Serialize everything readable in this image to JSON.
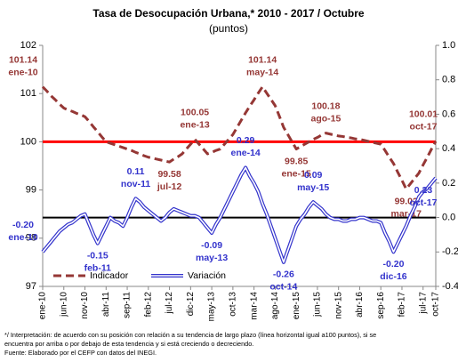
{
  "chart_data": {
    "type": "line",
    "title": "Tasa de Desocupación Urbana,* 2010 - 2017 / Octubre",
    "subtitle": "(puntos)",
    "categories": [
      "ene-10",
      null,
      null,
      null,
      null,
      "jun-10",
      null,
      null,
      null,
      null,
      "nov-10",
      null,
      null,
      null,
      null,
      "abr-11",
      null,
      null,
      null,
      null,
      "sep-11",
      null,
      null,
      null,
      null,
      "feb-12",
      null,
      null,
      null,
      null,
      "jul-12",
      null,
      null,
      null,
      null,
      "dic-12",
      null,
      null,
      null,
      null,
      "may-13",
      null,
      null,
      null,
      null,
      "oct-13",
      null,
      null,
      null,
      null,
      "mar-14",
      null,
      null,
      null,
      null,
      "ago-14",
      null,
      null,
      null,
      null,
      "ene-15",
      null,
      null,
      null,
      null,
      "jun-15",
      null,
      null,
      null,
      null,
      "nov-15",
      null,
      null,
      null,
      null,
      "abr-16",
      null,
      null,
      null,
      null,
      "sep-16",
      null,
      null,
      null,
      null,
      "feb-17",
      null,
      null,
      null,
      null,
      "jul-17",
      null,
      null,
      "oct-17"
    ],
    "series": [
      {
        "name": "Indicador",
        "color": "#953735",
        "axis": "y",
        "style": "dashed",
        "values": [
          101.14,
          101.05,
          100.95,
          100.87,
          100.78,
          100.7,
          100.66,
          100.63,
          100.59,
          100.56,
          100.52,
          100.42,
          100.31,
          100.21,
          100.1,
          100.0,
          99.97,
          99.94,
          99.91,
          99.88,
          99.85,
          99.82,
          99.78,
          99.75,
          99.71,
          99.68,
          99.66,
          99.64,
          99.62,
          99.6,
          99.58,
          99.64,
          99.69,
          99.75,
          99.85,
          99.95,
          100.05,
          99.95,
          99.85,
          99.75,
          99.78,
          99.82,
          99.85,
          99.95,
          100.05,
          100.15,
          100.3,
          100.45,
          100.6,
          100.74,
          100.87,
          101.01,
          101.14,
          101.01,
          100.88,
          100.75,
          100.53,
          100.3,
          100.15,
          100.0,
          99.85,
          99.9,
          99.95,
          100.0,
          100.05,
          100.09,
          100.14,
          100.18,
          100.16,
          100.14,
          100.12,
          100.11,
          100.09,
          100.08,
          100.06,
          100.05,
          100.03,
          100.01,
          99.99,
          99.97,
          99.95,
          99.82,
          99.68,
          99.55,
          99.37,
          99.2,
          99.02,
          99.13,
          99.24,
          99.35,
          99.52,
          99.68,
          99.85,
          100.01
        ],
        "value_labels": [
          [
            "101.14",
            "ene-10"
          ],
          null,
          null,
          null,
          null,
          null,
          null,
          null,
          null,
          null,
          null,
          null,
          null,
          null,
          null,
          null,
          null,
          null,
          null,
          null,
          null,
          null,
          null,
          null,
          null,
          null,
          null,
          null,
          null,
          null,
          [
            "99.58",
            "jul-12"
          ],
          null,
          null,
          null,
          null,
          null,
          [
            "100.05",
            "ene-13"
          ],
          null,
          null,
          null,
          null,
          null,
          null,
          null,
          null,
          null,
          null,
          null,
          null,
          null,
          null,
          null,
          [
            "101.14",
            "may-14"
          ],
          null,
          null,
          null,
          null,
          null,
          null,
          null,
          [
            "99.85",
            "ene-15"
          ],
          null,
          null,
          null,
          null,
          null,
          null,
          [
            "100.18",
            "ago-15"
          ],
          null,
          null,
          null,
          null,
          null,
          null,
          null,
          null,
          null,
          null,
          null,
          null,
          null,
          null,
          null,
          null,
          null,
          null,
          [
            "99.02",
            "mar-17"
          ],
          null,
          null,
          null,
          null,
          null,
          null,
          [
            "100.01",
            "oct-17"
          ]
        ]
      },
      {
        "name": "Variación",
        "color": "#3333cc",
        "axis": "y2",
        "style": "double",
        "values": [
          -0.2,
          -0.17,
          -0.14,
          -0.11,
          -0.08,
          -0.06,
          -0.04,
          -0.03,
          -0.01,
          0.01,
          0.02,
          -0.04,
          -0.1,
          -0.15,
          -0.1,
          -0.05,
          0.0,
          -0.02,
          -0.03,
          -0.05,
          0.0,
          0.06,
          0.11,
          0.09,
          0.06,
          0.04,
          0.02,
          0.0,
          -0.02,
          0.0,
          0.03,
          0.05,
          0.04,
          0.03,
          0.02,
          0.01,
          0.01,
          0.0,
          -0.03,
          -0.06,
          -0.09,
          -0.04,
          0.0,
          0.05,
          0.1,
          0.15,
          0.2,
          0.25,
          0.29,
          0.24,
          0.2,
          0.15,
          0.08,
          0.02,
          -0.05,
          -0.12,
          -0.19,
          -0.26,
          -0.19,
          -0.12,
          -0.05,
          -0.01,
          0.02,
          0.06,
          0.09,
          0.07,
          0.05,
          0.02,
          0.0,
          -0.01,
          -0.01,
          -0.02,
          -0.02,
          -0.01,
          -0.01,
          0.0,
          0.0,
          -0.01,
          -0.02,
          -0.02,
          -0.03,
          -0.09,
          -0.14,
          -0.2,
          -0.15,
          -0.1,
          -0.05,
          0.01,
          0.06,
          0.12,
          0.15,
          0.17,
          0.2,
          0.23
        ],
        "value_labels": [
          [
            "-0.20",
            "ene-10"
          ],
          null,
          null,
          null,
          null,
          null,
          null,
          null,
          null,
          null,
          null,
          null,
          null,
          [
            "-0.15",
            "feb-11"
          ],
          null,
          null,
          null,
          null,
          null,
          null,
          null,
          null,
          [
            "0.11",
            "nov-11"
          ],
          null,
          null,
          null,
          null,
          null,
          null,
          null,
          null,
          null,
          null,
          null,
          null,
          null,
          null,
          null,
          null,
          null,
          [
            "-0.09",
            "may-13"
          ],
          null,
          null,
          null,
          null,
          null,
          null,
          null,
          [
            "0.29",
            "ene-14"
          ],
          null,
          null,
          null,
          null,
          null,
          null,
          null,
          null,
          [
            "-0.26",
            "oct-14"
          ],
          null,
          null,
          null,
          null,
          null,
          null,
          [
            "0.09",
            "may-15"
          ],
          null,
          null,
          null,
          null,
          null,
          null,
          null,
          null,
          null,
          null,
          null,
          null,
          null,
          null,
          null,
          null,
          null,
          null,
          [
            "-0.20",
            "dic-16"
          ],
          null,
          null,
          null,
          null,
          null,
          null,
          null,
          null,
          null,
          [
            "0.23",
            "oct-17"
          ]
        ]
      }
    ],
    "ylim": [
      97,
      102
    ],
    "yticks": [
      97,
      98,
      99,
      100,
      101,
      102
    ],
    "y2lim": [
      -0.4,
      1.0
    ],
    "y2ticks": [
      -0.4,
      -0.2,
      {
        "value": 0,
        "label": "0.0"
      },
      0.2,
      0.4,
      0.6,
      0.8,
      {
        "value": 1,
        "label": "1.0"
      }
    ],
    "reference_lines": [
      {
        "value": 100,
        "axis": "y",
        "color": "#ff0000"
      },
      {
        "value": 0,
        "axis": "y2",
        "color": "#000000"
      }
    ],
    "legend": "bottom-left",
    "notes": [
      "*/ Interpretación: de acuerdo con su posición con relación a su tendencia de largo plazo (línea horizontal igual a100 puntos), si se",
      "encuentra por arriba o por debajo de esta tendencia y si está creciendo o decreciendo.",
      "Fuente: Elaborado por el CEFP con datos del INEGI."
    ]
  }
}
